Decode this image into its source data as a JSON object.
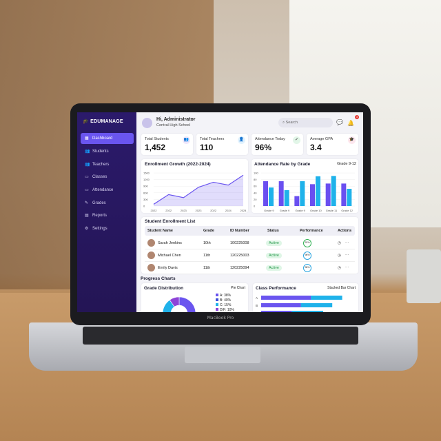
{
  "laptop_label": "MacBook Pro",
  "sidebar": {
    "brand": "EDUMANAGE",
    "items": [
      {
        "label": "Dashboard",
        "icon": "grid-icon",
        "active": true
      },
      {
        "label": "Students",
        "icon": "users-icon"
      },
      {
        "label": "Teachers",
        "icon": "users-icon"
      },
      {
        "label": "Classes",
        "icon": "calendar-icon"
      },
      {
        "label": "Attendance",
        "icon": "calendar-icon"
      },
      {
        "label": "Grades",
        "icon": "clipboard-icon"
      },
      {
        "label": "Reports",
        "icon": "document-icon"
      },
      {
        "label": "Settings",
        "icon": "gear-icon"
      }
    ]
  },
  "header": {
    "greeting": "Hi, Administrator",
    "school": "Central High School",
    "search_placeholder": "Search",
    "notification_count": "3"
  },
  "stats": [
    {
      "label": "Total Students",
      "value": "1,452",
      "color": "#efe6fb",
      "icon": "users-icon"
    },
    {
      "label": "Total Teachers",
      "value": "110",
      "color": "#e2f2fd",
      "icon": "user-icon"
    },
    {
      "label": "Attendance Today",
      "value": "96%",
      "color": "#e2f6e8",
      "icon": "check-circle-icon"
    },
    {
      "label": "Average GPA",
      "value": "3.4",
      "color": "#fde6ee",
      "icon": "graduation-cap-icon"
    }
  ],
  "chart_data": [
    {
      "type": "area",
      "title": "Enrollment Growth (2022-2024)",
      "categories": [
        "2022",
        "2022",
        "2023",
        "2023",
        "2022",
        "2024",
        "2024"
      ],
      "values": [
        80,
        520,
        380,
        850,
        1080,
        950,
        1400
      ],
      "yticks": [
        0,
        300,
        600,
        900,
        1200,
        1500
      ],
      "ylim": [
        0,
        1500
      ],
      "color": "#6a55ef"
    },
    {
      "type": "bar",
      "title": "Attendance Rate by Grade",
      "subtitle": "Grade 9-12",
      "categories": [
        "Grade 9",
        "Grade 9",
        "Grade 9",
        "Grade 10",
        "Grade 11",
        "Grade 12"
      ],
      "series": [
        {
          "values": [
            75,
            75,
            30,
            66,
            68,
            68
          ],
          "color": "#6a4ff0"
        },
        {
          "values": [
            56,
            48,
            75,
            90,
            91,
            52
          ],
          "color": "#1fb2ea"
        }
      ],
      "yticks": [
        0,
        20,
        40,
        60,
        80,
        100
      ],
      "ylim": [
        0,
        100
      ]
    },
    {
      "type": "pie",
      "title": "Grade Distribution",
      "subtitle": "Pie Chart",
      "slices": [
        {
          "label": "A: 38%",
          "value": 38,
          "color": "#6a55ef"
        },
        {
          "label": "B: 40%",
          "value": 40,
          "color": "#3f51d8"
        },
        {
          "label": "C: 15%",
          "value": 15,
          "color": "#1fb2ea"
        },
        {
          "label": "D/F: 10%",
          "value": 10,
          "color": "#8e44d8"
        }
      ]
    },
    {
      "type": "stacked-bar",
      "title": "Class Performance",
      "subtitle": "Stacked Bar Chart",
      "categories": [
        "A",
        "B",
        "C"
      ],
      "series": [
        {
          "values": [
            60,
            48,
            37
          ],
          "color": "#6a55ef"
        },
        {
          "values": [
            38,
            38,
            38
          ],
          "color": "#1fb2ea"
        }
      ]
    }
  ],
  "table": {
    "title": "Student Enrollment List",
    "columns": [
      "Student Name",
      "Grade",
      "ID Number",
      "Status",
      "Performance",
      "Actions"
    ],
    "rows": [
      {
        "name": "Sarah Jenkins",
        "grade": "10th",
        "id": "100225008",
        "status": "Active",
        "performance": "92%",
        "ring": "#2fb052"
      },
      {
        "name": "Michael Chen",
        "grade": "11th",
        "id": "120225003",
        "status": "Active",
        "performance": "96%",
        "ring": "#2aa5e0"
      },
      {
        "name": "Emily Davis",
        "grade": "11th",
        "id": "120225094",
        "status": "Active",
        "performance": "98%",
        "ring": "#2aa5e0"
      }
    ]
  },
  "progress_title": "Progress Charts"
}
